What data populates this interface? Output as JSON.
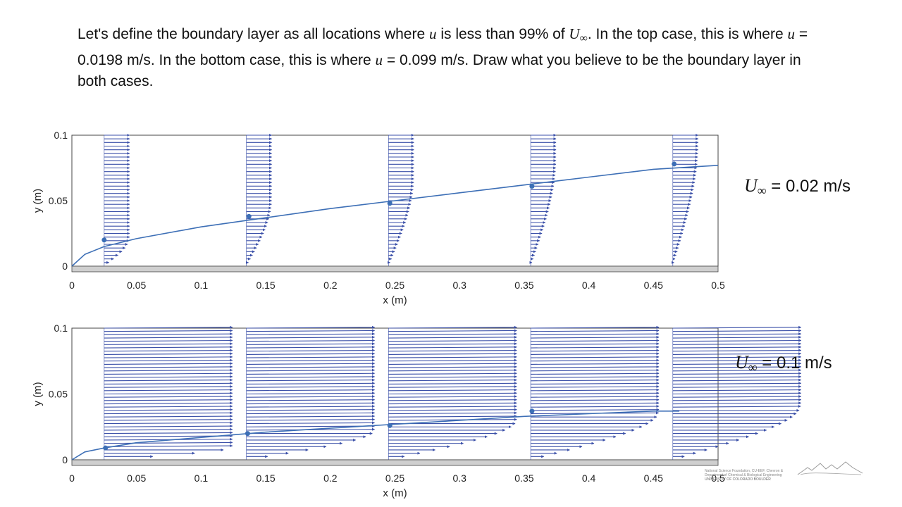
{
  "prompt": {
    "p1": "Let's define the boundary layer as all locations where ",
    "u": "u",
    "p2": " is less than 99% of ",
    "U": "U",
    "inf": "∞",
    "p3": ". In the top case, this is where ",
    "p4": " = 0.0198 m/s. In the bottom case, this is where ",
    "p5": " = 0.099 m/s. Draw what you believe to be the boundary layer in both cases."
  },
  "chart_data": [
    {
      "type": "quiver",
      "xlabel": "x (m)",
      "ylabel": "y (m)",
      "xlim": [
        0,
        0.5
      ],
      "ylim": [
        0,
        0.1
      ],
      "xticks": [
        "0",
        "0.05",
        "0.1",
        "0.15",
        "0.2",
        "0.25",
        "0.3",
        "0.35",
        "0.4",
        "0.45",
        "0.5"
      ],
      "yticks": [
        "0",
        "0.05",
        "0.1"
      ],
      "free_stream_velocity_label": "0.02 m/s",
      "U_inf": 0.02,
      "vector_station_x": [
        0.025,
        0.135,
        0.245,
        0.355,
        0.465
      ],
      "boundary_layer_sketch": {
        "x": [
          0,
          0.01,
          0.025,
          0.05,
          0.1,
          0.15,
          0.2,
          0.25,
          0.3,
          0.35,
          0.4,
          0.45,
          0.5
        ],
        "y": [
          0,
          0.009,
          0.015,
          0.021,
          0.03,
          0.037,
          0.044,
          0.05,
          0.056,
          0.062,
          0.068,
          0.074,
          0.077
        ]
      },
      "marked_points": [
        {
          "x": 0.025,
          "y": 0.02
        },
        {
          "x": 0.137,
          "y": 0.038
        },
        {
          "x": 0.246,
          "y": 0.048
        },
        {
          "x": 0.356,
          "y": 0.061
        },
        {
          "x": 0.466,
          "y": 0.078
        }
      ]
    },
    {
      "type": "quiver",
      "xlabel": "x (m)",
      "ylabel": "y (m)",
      "xlim": [
        0,
        0.5
      ],
      "ylim": [
        0,
        0.1
      ],
      "xticks": [
        "0",
        "0.05",
        "0.1",
        "0.15",
        "0.2",
        "0.25",
        "0.3",
        "0.35",
        "0.4",
        "0.45",
        "0.5"
      ],
      "yticks": [
        "0",
        "0.05",
        "0.1"
      ],
      "free_stream_velocity_label": "0.1 m/s",
      "U_inf": 0.1,
      "vector_station_x": [
        0.025,
        0.135,
        0.245,
        0.355,
        0.465
      ],
      "boundary_layer_sketch": {
        "x": [
          0,
          0.01,
          0.025,
          0.05,
          0.1,
          0.15,
          0.2,
          0.25,
          0.3,
          0.35,
          0.4,
          0.45,
          0.47
        ],
        "y": [
          0,
          0.006,
          0.009,
          0.013,
          0.017,
          0.021,
          0.024,
          0.027,
          0.03,
          0.033,
          0.035,
          0.037,
          0.037
        ]
      },
      "marked_points": [
        {
          "x": 0.026,
          "y": 0.009
        },
        {
          "x": 0.136,
          "y": 0.02
        },
        {
          "x": 0.246,
          "y": 0.026
        },
        {
          "x": 0.356,
          "y": 0.037
        }
      ]
    }
  ],
  "uinf_symbol": "U",
  "uinf_sub": "∞",
  "uinf_eq": " =  ",
  "credits": {
    "line1": "National Science Foundation, CU-EEF, Chevron &",
    "line2": "Department of Chemical & Biological Engineering",
    "line3": "UNIVERSITY OF COLORADO BOULDER"
  },
  "colors": {
    "vector": "#3a4fa8",
    "sketch": "#3d6fb6",
    "wall": "#cfcfcf",
    "frame": "#444444"
  }
}
